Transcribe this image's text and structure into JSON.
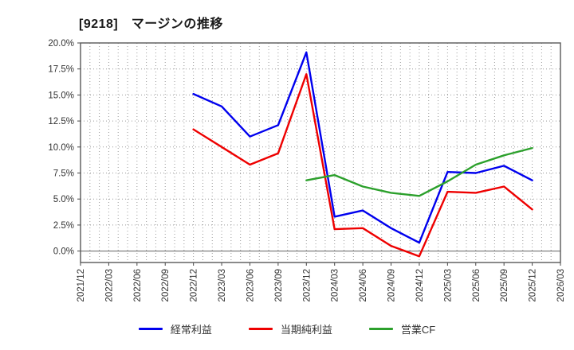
{
  "title": "[9218]　マージンの推移",
  "chart_data": {
    "type": "line",
    "categories": [
      "2021/12",
      "2022/03",
      "2022/06",
      "2022/09",
      "2022/12",
      "2023/03",
      "2023/06",
      "2023/09",
      "2023/12",
      "2024/03",
      "2024/06",
      "2024/09",
      "2024/12",
      "2025/03",
      "2025/06",
      "2025/09",
      "2025/12",
      "2026/03"
    ],
    "y_tick_labels": [
      "0.0%",
      "2.5%",
      "5.0%",
      "7.5%",
      "10.0%",
      "12.5%",
      "15.0%",
      "17.5%",
      "20.0%"
    ],
    "y_tick_values": [
      0,
      2.5,
      5,
      7.5,
      10,
      12.5,
      15,
      17.5,
      20
    ],
    "ylim": [
      -1.1,
      20.0
    ],
    "grid": "dotted gray; vertical lines monthly, horizontal every 2.5%; solid zero line",
    "legend_position": "bottom-center",
    "unit": "percent",
    "series": [
      {
        "name": "経常利益",
        "color": "#0000ee",
        "start_index": 4,
        "values": [
          15.1,
          13.9,
          11.0,
          12.1,
          19.1,
          3.3,
          3.9,
          2.2,
          0.8,
          7.6,
          7.5,
          8.2,
          6.8
        ]
      },
      {
        "name": "当期純利益",
        "color": "#ee0000",
        "start_index": 4,
        "values": [
          11.7,
          10.0,
          8.3,
          9.4,
          17.0,
          2.1,
          2.2,
          0.5,
          -0.5,
          5.7,
          5.6,
          6.2,
          4.0
        ]
      },
      {
        "name": "営業CF",
        "color": "#2ca02c",
        "start_index": 8,
        "values": [
          6.8,
          7.3,
          6.2,
          5.6,
          5.3,
          6.7,
          8.3,
          9.2,
          9.9
        ]
      }
    ]
  },
  "legend": {
    "items": [
      {
        "label": "経常利益",
        "color": "#0000ee"
      },
      {
        "label": "当期純利益",
        "color": "#ee0000"
      },
      {
        "label": "営業CF",
        "color": "#2ca02c"
      }
    ]
  },
  "colors": {
    "border": "#595959",
    "grid": "#999999",
    "zero_line": "#808080",
    "tick_text": "#333333",
    "title_text": "#1a1a1a"
  }
}
